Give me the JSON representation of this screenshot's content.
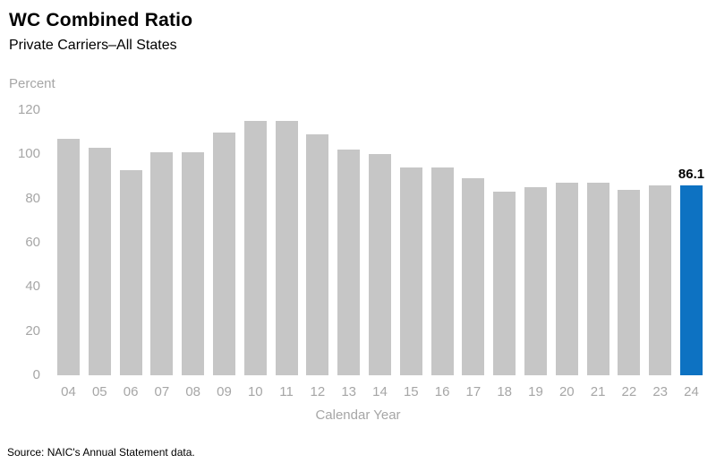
{
  "header": {
    "title": "WC Combined Ratio",
    "subtitle": "Private Carriers–All States"
  },
  "chart_data": {
    "type": "bar",
    "title": "WC Combined Ratio",
    "subtitle": "Private Carriers–All States",
    "unit_label": "Percent",
    "xlabel": "Calendar Year",
    "ylabel": "Percent",
    "ylim": [
      0,
      120
    ],
    "yticks": [
      0,
      20,
      40,
      60,
      80,
      100,
      120
    ],
    "grid": false,
    "legend": "none",
    "categories": [
      "04",
      "05",
      "06",
      "07",
      "08",
      "09",
      "10",
      "11",
      "12",
      "13",
      "14",
      "15",
      "16",
      "17",
      "18",
      "19",
      "20",
      "21",
      "22",
      "23",
      "24"
    ],
    "values": [
      107,
      103,
      93,
      101,
      101,
      110,
      115,
      115,
      109,
      102,
      100,
      94,
      94,
      89,
      83,
      85,
      87,
      87,
      84,
      86,
      86.1
    ],
    "highlight_index": 20,
    "data_label": {
      "index": 20,
      "text": "86.1"
    },
    "colors": {
      "bar": "#c6c6c6",
      "highlight": "#0d72c2",
      "axis_text": "#a6a6a6",
      "label_text": "#000000"
    }
  },
  "footer": {
    "source": "Source: NAIC's Annual Statement data."
  }
}
